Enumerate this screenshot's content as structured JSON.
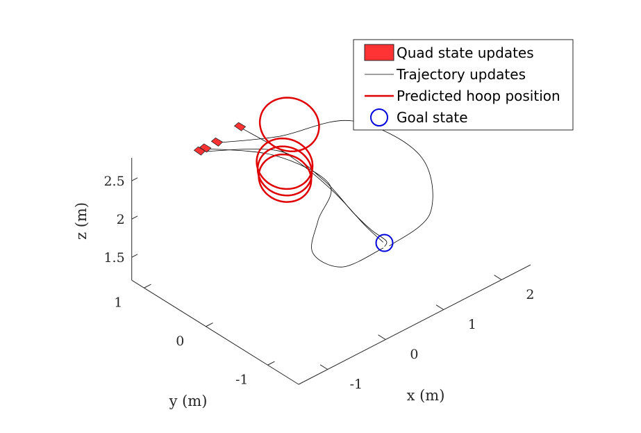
{
  "chart_data": {
    "type": "line3d",
    "xlabel": "x (m)",
    "ylabel": "y (m)",
    "zlabel": "z (m)",
    "xlim": [
      -1.5,
      2.5
    ],
    "ylim": [
      -1.5,
      1.2
    ],
    "zlim": [
      1.2,
      2.8
    ],
    "x_ticks": [
      "-1",
      "0",
      "1",
      "2"
    ],
    "y_ticks": [
      "-1",
      "0",
      "1"
    ],
    "z_ticks": [
      "1.5",
      "2",
      "2.5"
    ],
    "grid": false,
    "legend_position": "top-right",
    "legend": [
      {
        "label": "Quad state updates",
        "style": "patch",
        "color": "#ff3333"
      },
      {
        "label": "Trajectory updates",
        "style": "thin-line",
        "color": "#000000"
      },
      {
        "label": "Predicted hoop position",
        "style": "thick-line",
        "color": "#e00000"
      },
      {
        "label": "Goal state",
        "style": "circle",
        "color": "#0000dd"
      }
    ],
    "quad_states": [
      {
        "x": -0.65,
        "y": 0.9,
        "z": 2.7
      },
      {
        "x": -0.55,
        "y": 0.9,
        "z": 2.7
      },
      {
        "x": -0.35,
        "y": 0.9,
        "z": 2.7
      },
      {
        "x": 0.1,
        "y": 0.95,
        "z": 2.7
      }
    ],
    "trajectory_curves": [
      {
        "points": [
          [
            -0.65,
            0.9,
            2.7
          ],
          [
            0.4,
            0.6,
            2.45
          ],
          [
            0.9,
            0.35,
            2.0
          ],
          [
            1.15,
            0.1,
            1.6
          ],
          [
            1.35,
            0.0,
            1.35
          ],
          [
            1.5,
            -0.1,
            1.2
          ],
          [
            1.42,
            -0.15,
            1.18
          ]
        ]
      },
      {
        "points": [
          [
            -0.55,
            0.9,
            2.7
          ],
          [
            0.35,
            0.62,
            2.4
          ],
          [
            0.95,
            0.3,
            1.95
          ],
          [
            0.7,
            0.25,
            1.6
          ],
          [
            0.45,
            0.1,
            1.35
          ],
          [
            0.75,
            -0.1,
            1.15
          ],
          [
            1.4,
            -0.15,
            1.17
          ]
        ]
      },
      {
        "points": [
          [
            -0.35,
            0.9,
            2.7
          ],
          [
            0.5,
            0.7,
            2.55
          ],
          [
            1.6,
            0.55,
            2.4
          ],
          [
            2.3,
            0.1,
            1.9
          ],
          [
            2.05,
            -0.3,
            1.45
          ],
          [
            1.45,
            -0.2,
            1.2
          ]
        ]
      },
      {
        "points": [
          [
            0.1,
            0.95,
            2.7
          ],
          [
            0.6,
            0.6,
            2.3
          ],
          [
            1.0,
            0.3,
            1.85
          ],
          [
            1.3,
            0.05,
            1.4
          ],
          [
            1.45,
            -0.1,
            1.2
          ]
        ]
      }
    ],
    "hoops": [
      {
        "center": [
          0.9,
          0.9,
          2.45
        ],
        "radius": 0.35
      },
      {
        "center": [
          0.55,
          0.65,
          2.2
        ],
        "radius": 0.33
      },
      {
        "center": [
          0.5,
          0.6,
          2.15
        ],
        "radius": 0.32
      },
      {
        "center": [
          0.45,
          0.55,
          2.1
        ],
        "radius": 0.31
      }
    ],
    "goal_state": {
      "x": 1.45,
      "y": -0.12,
      "z": 1.2
    }
  }
}
